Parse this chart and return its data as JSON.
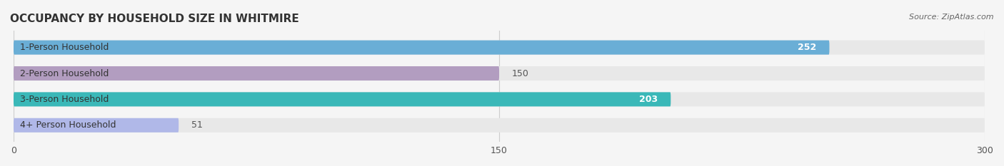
{
  "title": "OCCUPANCY BY HOUSEHOLD SIZE IN WHITMIRE",
  "source": "Source: ZipAtlas.com",
  "categories": [
    "1-Person Household",
    "2-Person Household",
    "3-Person Household",
    "4+ Person Household"
  ],
  "values": [
    252,
    150,
    203,
    51
  ],
  "bar_colors": [
    "#6aaed6",
    "#b29dc0",
    "#3ab8b8",
    "#b0b8e8"
  ],
  "xlim": [
    0,
    300
  ],
  "xticks": [
    0,
    150,
    300
  ],
  "label_colors": [
    "white",
    "black",
    "white",
    "black"
  ],
  "background_color": "#f5f5f5",
  "bar_background_color": "#e8e8e8"
}
